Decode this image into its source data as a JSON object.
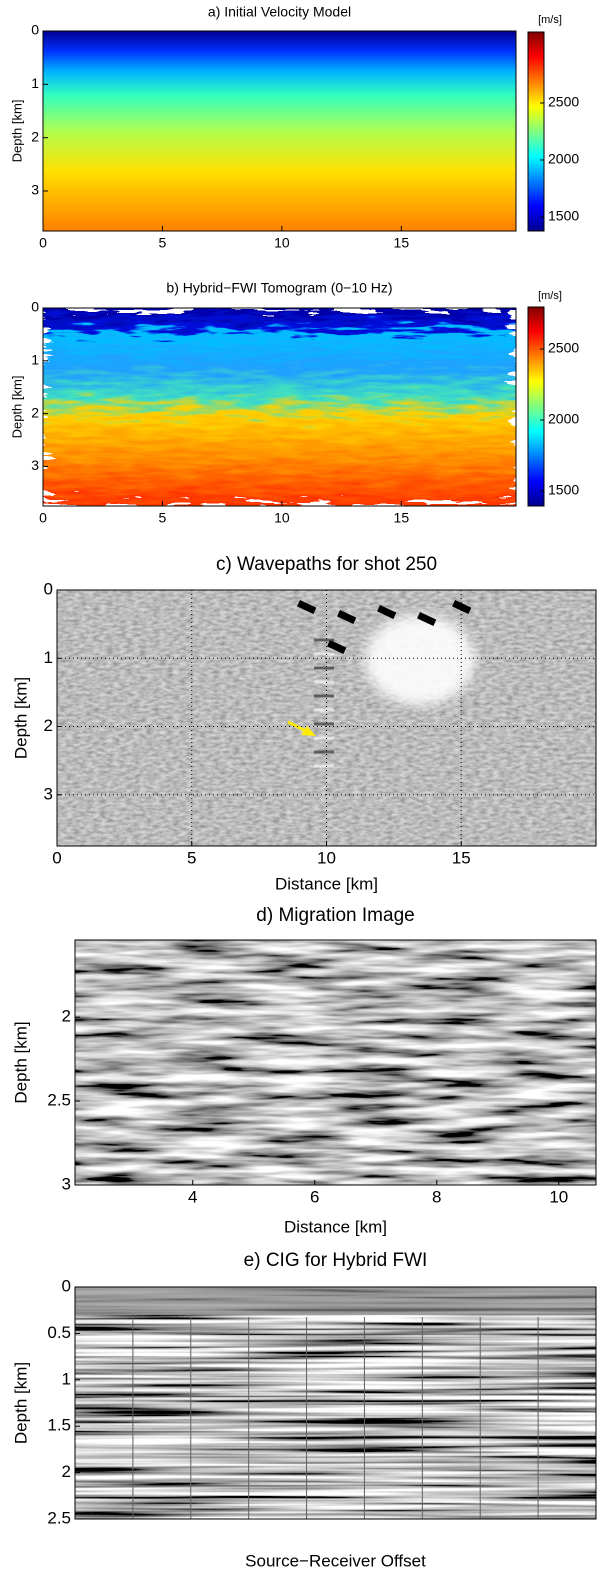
{
  "chart_data": [
    {
      "type": "heatmap",
      "title": "a) Initial Velocity Model",
      "ylabel": "Depth [km]",
      "colormap": "jet",
      "xlim": [
        0,
        19.8
      ],
      "xticks": [
        0,
        5,
        10,
        15
      ],
      "ylim": [
        0,
        3.75
      ],
      "yticks": [
        0,
        1,
        2,
        3
      ],
      "y_reversed": true,
      "colorbar": {
        "label": "[m/s]",
        "lim": [
          1377,
          3123
        ],
        "ticks": [
          1500,
          2000,
          2500
        ]
      }
    },
    {
      "type": "heatmap",
      "title": "b) Hybrid−FWI Tomogram (0−10 Hz)",
      "ylabel": "Depth [km]",
      "colormap": "jet",
      "xlim": [
        0,
        19.8
      ],
      "xticks": [
        0,
        5,
        10,
        15
      ],
      "ylim": [
        0,
        3.75
      ],
      "yticks": [
        0,
        1,
        2,
        3
      ],
      "y_reversed": true,
      "colorbar": {
        "label": "[m/s]",
        "lim": [
          1394,
          2796
        ],
        "ticks": [
          1500,
          2000,
          2500
        ]
      }
    },
    {
      "type": "image",
      "title": "c) Wavepaths for shot 250",
      "xlabel": "Distance [km]",
      "ylabel": "Depth [km]",
      "colormap": "gray",
      "xlim": [
        0,
        20
      ],
      "xticks": [
        0,
        5,
        10,
        15
      ],
      "ylim": [
        0,
        3.75
      ],
      "yticks": [
        0,
        1,
        2,
        3
      ],
      "y_reversed": true,
      "grid": true
    },
    {
      "type": "image",
      "title": "d) Migration Image",
      "xlabel": "Distance [km]",
      "ylabel": "Depth [km]",
      "colormap": "gray",
      "xlim": [
        2.07,
        10.61
      ],
      "xticks": [
        4,
        6,
        8,
        10
      ],
      "ylim": [
        1.54,
        3
      ],
      "yticks": [
        2,
        2.5,
        3
      ],
      "y_reversed": true
    },
    {
      "type": "image",
      "title": "e) CIG for Hybrid FWI",
      "xlabel": "Source−Receiver Offset",
      "ylabel": "Depth [km]",
      "colormap": "gray",
      "ylim": [
        0,
        2.5
      ],
      "yticks": [
        0,
        0.5,
        1,
        1.5,
        2,
        2.5
      ],
      "y_reversed": true
    }
  ]
}
